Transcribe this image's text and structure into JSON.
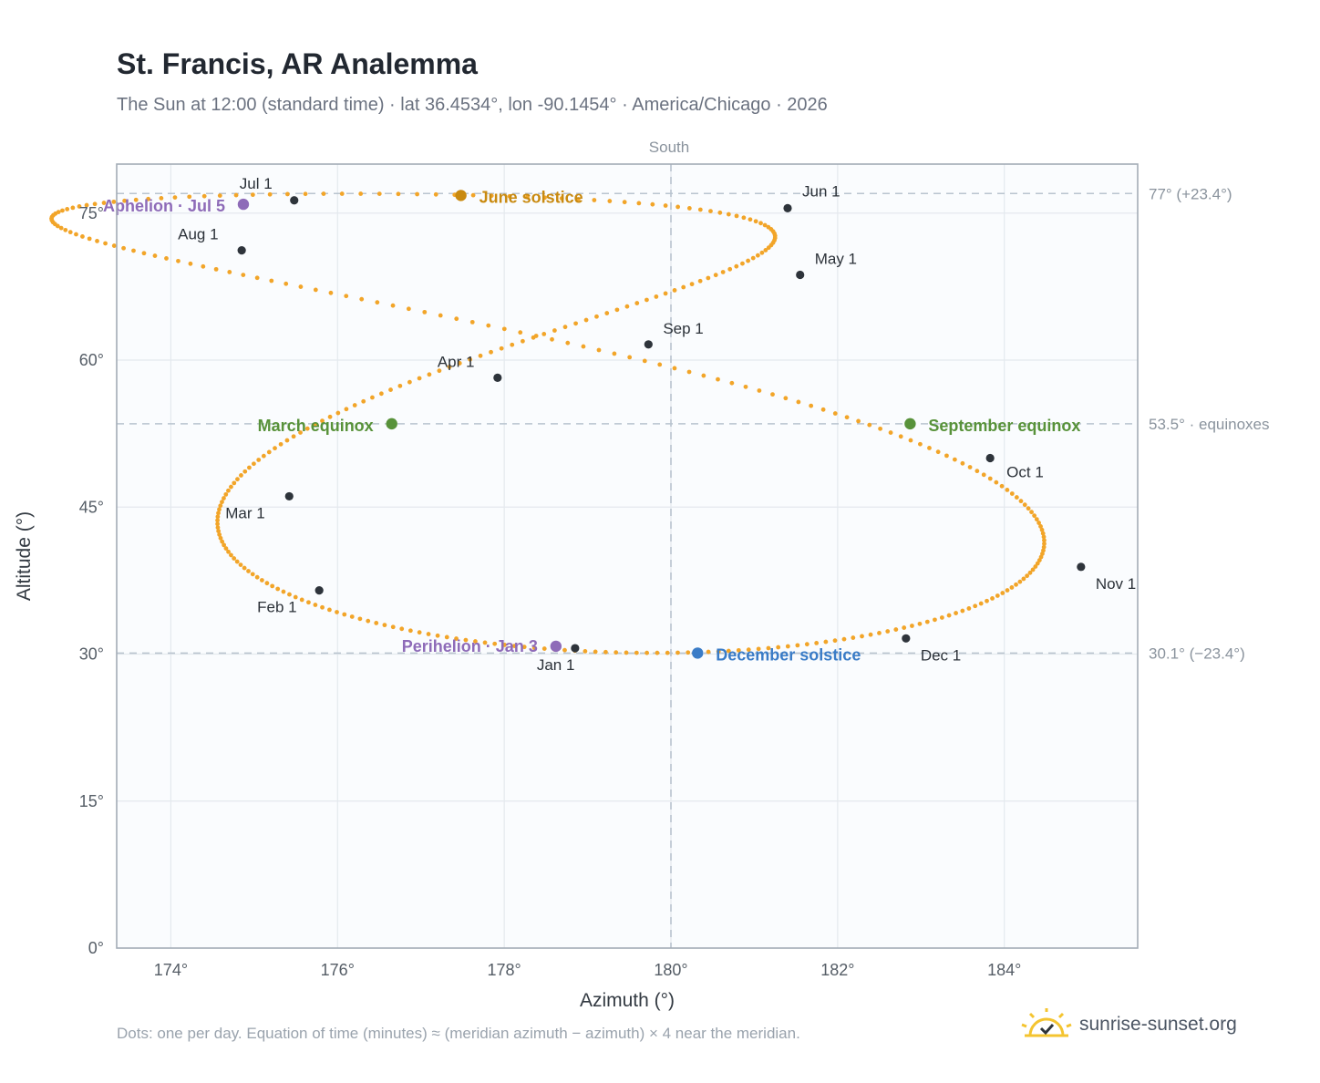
{
  "title": "St. Francis, AR Analemma",
  "subtitle": "The Sun at 12:00 (standard time) · lat 36.4534°, lon -90.1454° · America/Chicago · 2026",
  "footnote": "Dots: one per day. Equation of time (minutes) ≈ (meridian azimuth − azimuth) × 4 near the meridian.",
  "brand": {
    "name": "sunrise-sunset.org",
    "logo_icon": "sun-check-icon"
  },
  "colors": {
    "path": "#f2a529",
    "monthly": "#2e343b",
    "june": "#c98a10",
    "december": "#3a7cc7",
    "equinox": "#58923a",
    "apsis": "#8e6bb8",
    "reference": "#b9c4cf"
  },
  "chart_data": {
    "type": "scatter",
    "xlabel": "Azimuth (°)",
    "ylabel": "Altitude (°)",
    "xlim": [
      173.35,
      185.6
    ],
    "ylim": [
      0,
      80
    ],
    "xticks": [
      174,
      176,
      178,
      180,
      182,
      184
    ],
    "xtick_labels": [
      "174°",
      "176°",
      "178°",
      "180°",
      "182°",
      "184°"
    ],
    "yticks": [
      0,
      15,
      30,
      45,
      60,
      75
    ],
    "ytick_labels": [
      "0°",
      "15°",
      "30°",
      "45°",
      "60°",
      "75°"
    ],
    "grid": true,
    "meridian": {
      "x": 180,
      "label": "South"
    },
    "reference_lines": [
      {
        "y": 77.0,
        "label": "77° (+23.4°)"
      },
      {
        "y": 53.5,
        "label": "53.5° · equinoxes"
      },
      {
        "y": 30.1,
        "label": "30.1° (−23.4°)"
      }
    ],
    "daily_path_note": "one dot per day, 365 points",
    "monthly_markers": [
      {
        "label": "Jan 1",
        "x": 178.85,
        "y": 30.6
      },
      {
        "label": "Feb 1",
        "x": 175.78,
        "y": 36.5
      },
      {
        "label": "Mar 1",
        "x": 175.42,
        "y": 46.1
      },
      {
        "label": "Apr 1",
        "x": 177.92,
        "y": 58.2
      },
      {
        "label": "May 1",
        "x": 181.55,
        "y": 68.7
      },
      {
        "label": "Jun 1",
        "x": 181.4,
        "y": 75.5
      },
      {
        "label": "Jul 1",
        "x": 175.48,
        "y": 76.3
      },
      {
        "label": "Aug 1",
        "x": 174.85,
        "y": 71.2
      },
      {
        "label": "Sep 1",
        "x": 179.73,
        "y": 61.6
      },
      {
        "label": "Oct 1",
        "x": 183.83,
        "y": 50.0
      },
      {
        "label": "Nov 1",
        "x": 184.92,
        "y": 38.9
      },
      {
        "label": "Dec 1",
        "x": 182.82,
        "y": 31.6
      }
    ],
    "events": [
      {
        "label": "June solstice",
        "x": 177.48,
        "y": 76.8,
        "kind": "june"
      },
      {
        "label": "December solstice",
        "x": 180.32,
        "y": 30.1,
        "kind": "december"
      },
      {
        "label": "March equinox",
        "x": 176.65,
        "y": 53.5,
        "kind": "equinox"
      },
      {
        "label": "September equinox",
        "x": 182.87,
        "y": 53.5,
        "kind": "equinox"
      },
      {
        "label": "Aphelion · Jul 5",
        "x": 174.87,
        "y": 75.9,
        "kind": "apsis"
      },
      {
        "label": "Perihelion · Jan 3",
        "x": 178.62,
        "y": 30.8,
        "kind": "apsis"
      }
    ]
  }
}
